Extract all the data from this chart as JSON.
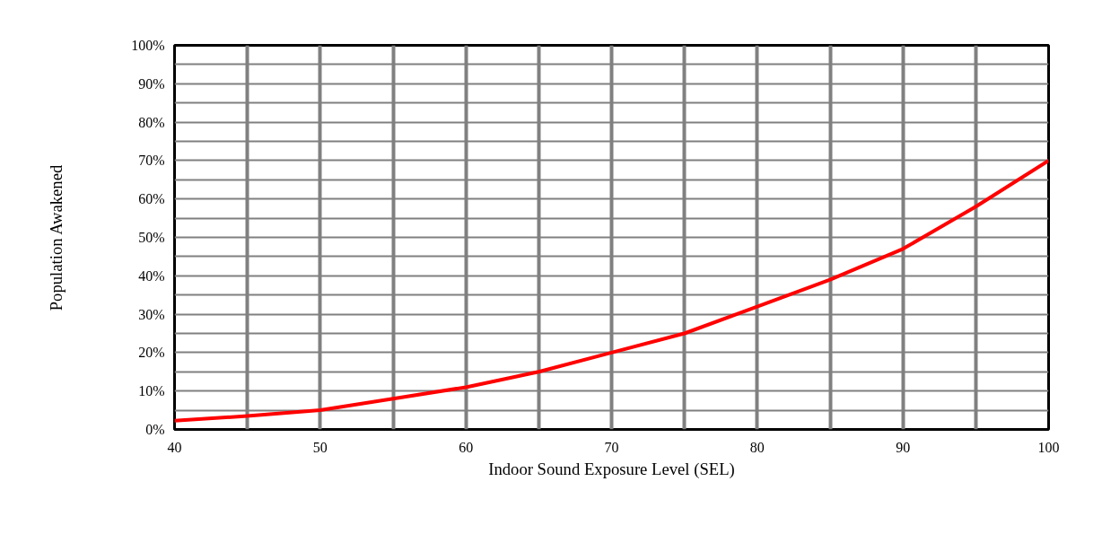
{
  "chart_data": {
    "type": "line",
    "xlabel": "Indoor Sound Exposure Level (SEL)",
    "ylabel": "Population Awakened",
    "x": [
      40,
      45,
      50,
      55,
      60,
      65,
      70,
      75,
      80,
      85,
      90,
      95,
      100
    ],
    "series": [
      {
        "color": "#ff0000",
        "values": [
          2.3,
          3.5,
          5,
          8,
          11,
          15,
          20,
          25,
          32,
          39,
          47,
          58,
          70
        ]
      }
    ],
    "xlim": [
      40,
      100
    ],
    "ylim": [
      0,
      100
    ],
    "xticks": [
      40,
      {
        "value": 45,
        "label": null
      },
      50,
      {
        "value": 55,
        "label": null
      },
      60,
      {
        "value": 65,
        "label": null
      },
      70,
      {
        "value": 75,
        "label": null
      },
      80,
      {
        "value": 85,
        "label": null
      },
      90,
      {
        "value": 95,
        "label": null
      },
      100
    ],
    "yticks": [
      {
        "value": 0,
        "label": "0%"
      },
      {
        "value": 5,
        "label": null
      },
      {
        "value": 10,
        "label": "10%"
      },
      {
        "value": 15,
        "label": null
      },
      {
        "value": 20,
        "label": "20%"
      },
      {
        "value": 25,
        "label": null
      },
      {
        "value": 30,
        "label": "30%"
      },
      {
        "value": 35,
        "label": null
      },
      {
        "value": 40,
        "label": "40%"
      },
      {
        "value": 45,
        "label": null
      },
      {
        "value": 50,
        "label": "50%"
      },
      {
        "value": 55,
        "label": null
      },
      {
        "value": 60,
        "label": "60%"
      },
      {
        "value": 65,
        "label": null
      },
      {
        "value": 70,
        "label": "70%"
      },
      {
        "value": 75,
        "label": null
      },
      {
        "value": 80,
        "label": "80%"
      },
      {
        "value": 85,
        "label": null
      },
      {
        "value": 90,
        "label": "90%"
      },
      {
        "value": 95,
        "label": null
      },
      {
        "value": 100,
        "label": "100%"
      }
    ],
    "grid": true,
    "marker": "none",
    "line_style": "solid"
  }
}
